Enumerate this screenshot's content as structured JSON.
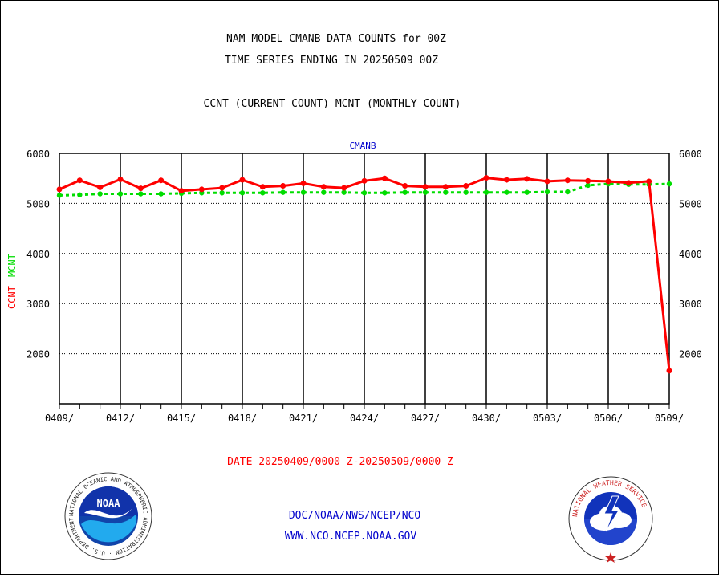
{
  "title": {
    "line1": "NAM MODEL CMANB DATA COUNTS for 00Z",
    "line2": "TIME SERIES ENDING IN 20250509 00Z",
    "line3": "CCNT (CURRENT COUNT) MCNT (MONTHLY COUNT)"
  },
  "footer": {
    "date_range": "DATE 20250409/0000 Z-20250509/0000 Z",
    "org_line1": "DOC/NOAA/NWS/NCEP/NCO",
    "org_line2": "WWW.NCO.NCEP.NOAA.GOV"
  },
  "logos": {
    "noaa": {
      "text": "NOAA",
      "ring_text": "NATIONAL OCEANIC AND ATMOSPHERIC ADMINISTRATION · U.S. DEPARTMENT OF COMMERCE",
      "icon": "noaa-logo"
    },
    "nws": {
      "ring_text": "NATIONAL WEATHER SERVICE",
      "icon": "nws-logo"
    }
  },
  "colors": {
    "ccnt": "#ff0000",
    "mcnt": "#00dd00",
    "station": "#0000cc",
    "org_text": "#0000cc",
    "date_text": "#ff0000"
  },
  "chart_data": {
    "type": "line",
    "station_label": "CMANB",
    "ylabel_series": [
      {
        "name": "CCNT",
        "color": "#ff0000"
      },
      {
        "name": "MCNT",
        "color": "#00dd00"
      }
    ],
    "ylim": [
      1000,
      6000
    ],
    "yticks": [
      2000,
      3000,
      4000,
      5000,
      6000
    ],
    "xtick_labels": [
      "0409/",
      "0412/",
      "0415/",
      "0418/",
      "0421/",
      "0424/",
      "0427/",
      "0430/",
      "0503/",
      "0506/",
      "0509/"
    ],
    "grid": true,
    "x": [
      "0409",
      "0410",
      "0411",
      "0412",
      "0413",
      "0414",
      "0415",
      "0416",
      "0417",
      "0418",
      "0419",
      "0420",
      "0421",
      "0422",
      "0423",
      "0424",
      "0425",
      "0426",
      "0427",
      "0428",
      "0429",
      "0430",
      "0501",
      "0502",
      "0503",
      "0504",
      "0505",
      "0506",
      "0507",
      "0508",
      "0509"
    ],
    "series": [
      {
        "name": "CCNT",
        "style": "solid",
        "values": [
          5280,
          5460,
          5320,
          5480,
          5300,
          5460,
          5250,
          5280,
          5310,
          5470,
          5330,
          5350,
          5400,
          5330,
          5310,
          5450,
          5500,
          5350,
          5330,
          5330,
          5350,
          5510,
          5470,
          5490,
          5440,
          5460,
          5450,
          5440,
          5410,
          5440,
          1660
        ]
      },
      {
        "name": "MCNT",
        "style": "dotted",
        "values": [
          5160,
          5170,
          5190,
          5190,
          5190,
          5190,
          5200,
          5210,
          5210,
          5210,
          5210,
          5220,
          5220,
          5220,
          5220,
          5210,
          5210,
          5220,
          5220,
          5220,
          5220,
          5220,
          5220,
          5220,
          5230,
          5230,
          5360,
          5390,
          5380,
          5380,
          5390
        ]
      }
    ]
  }
}
